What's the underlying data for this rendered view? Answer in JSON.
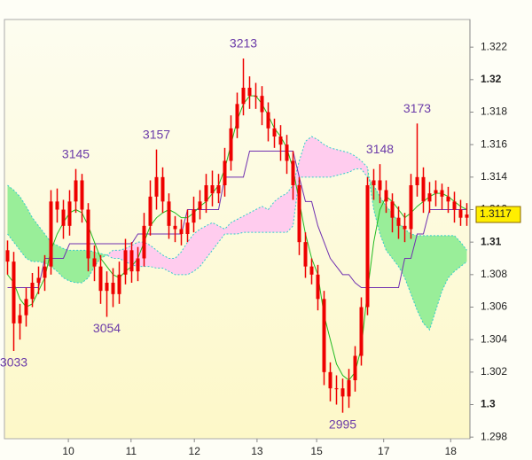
{
  "chart_data": {
    "type": "candlestick",
    "open": [
      1.3095,
      1.3088,
      1.305,
      1.3055,
      1.3065,
      1.3075,
      1.3078,
      1.3085,
      1.3125,
      1.312,
      1.311,
      1.3125,
      1.3138,
      1.312,
      1.309,
      1.3085,
      1.307,
      1.3075,
      1.3068,
      1.308,
      1.3095,
      1.3082,
      1.309,
      1.311,
      1.3128,
      1.314,
      1.3125,
      1.311,
      1.3108,
      1.3105,
      1.3112,
      1.312,
      1.3125,
      1.3135,
      1.313,
      1.3135,
      1.315,
      1.317,
      1.3185,
      1.3195,
      1.319,
      1.319,
      1.318,
      1.317,
      1.3165,
      1.316,
      1.315,
      1.3135,
      1.31,
      1.3085,
      1.308,
      1.3065,
      1.302,
      1.301,
      1.301,
      1.3005,
      1.3015,
      1.303,
      1.306,
      1.3135,
      1.3138,
      1.3132,
      1.3125,
      1.3115,
      1.311,
      1.3108,
      1.3135,
      1.314,
      1.3125,
      1.313,
      1.3132,
      1.3128,
      1.3125,
      1.312,
      1.3115
    ],
    "high": [
      1.3101,
      1.3094,
      1.3062,
      1.3072,
      1.3081,
      1.3085,
      1.3092,
      1.3132,
      1.3133,
      1.3126,
      1.3132,
      1.3145,
      1.3142,
      1.3124,
      1.3098,
      1.3092,
      1.3082,
      1.3084,
      1.3088,
      1.3102,
      1.31,
      1.3097,
      1.3118,
      1.3138,
      1.3157,
      1.3146,
      1.313,
      1.3116,
      1.3114,
      1.312,
      1.3128,
      1.3132,
      1.3142,
      1.3144,
      1.3142,
      1.3158,
      1.3178,
      1.3192,
      1.3213,
      1.3202,
      1.3198,
      1.3196,
      1.3186,
      1.3176,
      1.3172,
      1.3166,
      1.3156,
      1.314,
      1.3106,
      1.309,
      1.3086,
      1.307,
      1.3026,
      1.3018,
      1.3016,
      1.3022,
      1.3036,
      1.3066,
      1.314,
      1.3145,
      1.3148,
      1.3138,
      1.313,
      1.3122,
      1.3118,
      1.3142,
      1.3173,
      1.3146,
      1.3137,
      1.3138,
      1.3136,
      1.3134,
      1.3131,
      1.3126,
      1.3124
    ],
    "low": [
      1.308,
      1.3033,
      1.304,
      1.3048,
      1.306,
      1.3068,
      1.307,
      1.308,
      1.3112,
      1.3102,
      1.3104,
      1.3118,
      1.3112,
      1.3082,
      1.3076,
      1.3062,
      1.3054,
      1.306,
      1.3062,
      1.3074,
      1.3075,
      1.3076,
      1.3085,
      1.3104,
      1.312,
      1.3118,
      1.3102,
      1.31,
      1.3098,
      1.31,
      1.3106,
      1.3114,
      1.3118,
      1.3122,
      1.3124,
      1.3128,
      1.3144,
      1.3164,
      1.3178,
      1.3182,
      1.3182,
      1.3172,
      1.3162,
      1.3158,
      1.315,
      1.3142,
      1.3126,
      1.3092,
      1.3078,
      1.3074,
      1.3058,
      1.3012,
      1.3002,
      1.3,
      1.2995,
      1.2998,
      1.3008,
      1.3024,
      1.3055,
      1.3126,
      1.3124,
      1.3118,
      1.3106,
      1.3102,
      1.31,
      1.3102,
      1.3128,
      1.3118,
      1.3118,
      1.3122,
      1.312,
      1.3118,
      1.3112,
      1.311,
      1.311
    ],
    "close": [
      1.3088,
      1.305,
      1.3055,
      1.3065,
      1.3075,
      1.3078,
      1.3085,
      1.3125,
      1.312,
      1.311,
      1.3125,
      1.3138,
      1.312,
      1.309,
      1.3085,
      1.307,
      1.3075,
      1.3068,
      1.308,
      1.3095,
      1.3082,
      1.309,
      1.311,
      1.3128,
      1.314,
      1.3125,
      1.311,
      1.3108,
      1.3105,
      1.3112,
      1.312,
      1.3125,
      1.3135,
      1.313,
      1.3135,
      1.315,
      1.317,
      1.3185,
      1.3195,
      1.319,
      1.319,
      1.318,
      1.317,
      1.3165,
      1.316,
      1.315,
      1.3135,
      1.31,
      1.3085,
      1.308,
      1.3065,
      1.302,
      1.301,
      1.301,
      1.3005,
      1.3015,
      1.303,
      1.306,
      1.3135,
      1.3138,
      1.3132,
      1.3125,
      1.3115,
      1.311,
      1.3108,
      1.3135,
      1.314,
      1.3125,
      1.313,
      1.3132,
      1.3128,
      1.3125,
      1.312,
      1.3115,
      1.3117
    ],
    "color": "#ee0000",
    "lines": [
      {
        "color": "#7030b0",
        "values": [
          1.3072,
          1.3072,
          1.3072,
          1.3072,
          1.3072,
          1.3072,
          1.309,
          1.309,
          1.309,
          1.309,
          1.3099,
          1.3099,
          1.3099,
          1.3099,
          1.3099,
          1.3099,
          1.3099,
          1.3099,
          1.3099,
          1.3099,
          1.3099,
          1.3105,
          1.3105,
          1.3105,
          1.3105,
          1.3105,
          1.3105,
          1.3105,
          1.3105,
          1.312,
          1.312,
          1.312,
          1.312,
          1.312,
          1.312,
          1.314,
          1.314,
          1.314,
          1.314,
          1.3156,
          1.3156,
          1.3156,
          1.3156,
          1.3156,
          1.3156,
          1.3156,
          1.3156,
          1.314,
          1.3125,
          1.3125,
          1.311,
          1.31,
          1.309,
          1.3085,
          1.308,
          1.308,
          1.3075,
          1.3072,
          1.3072,
          1.3072,
          1.3072,
          1.3072,
          1.3072,
          1.3072,
          1.309,
          1.309,
          1.3105,
          1.3105,
          1.312,
          1.312,
          1.312,
          1.312,
          1.312,
          1.312,
          1.312
        ]
      },
      {
        "color": "#22bb22",
        "values": [
          1.308,
          1.3075,
          1.3065,
          1.306,
          1.3062,
          1.307,
          1.3078,
          1.3095,
          1.3105,
          1.3112,
          1.3118,
          1.312,
          1.3118,
          1.311,
          1.31,
          1.309,
          1.3085,
          1.308,
          1.3078,
          1.3082,
          1.3085,
          1.309,
          1.31,
          1.311,
          1.3115,
          1.3118,
          1.312,
          1.3118,
          1.3115,
          1.3115,
          1.3118,
          1.3122,
          1.3125,
          1.313,
          1.3135,
          1.3145,
          1.316,
          1.3175,
          1.3185,
          1.319,
          1.319,
          1.3185,
          1.3178,
          1.317,
          1.3165,
          1.3158,
          1.3145,
          1.3125,
          1.3105,
          1.309,
          1.308,
          1.3055,
          1.304,
          1.3025,
          1.3018,
          1.3015,
          1.302,
          1.3035,
          1.307,
          1.31,
          1.312,
          1.3128,
          1.3125,
          1.312,
          1.3115,
          1.3118,
          1.3122,
          1.3125,
          1.3128,
          1.313,
          1.313,
          1.3128,
          1.3125,
          1.3122,
          1.312
        ]
      }
    ],
    "cloud": {
      "span_a": [
        1.3135,
        1.3132,
        1.3128,
        1.3122,
        1.3115,
        1.311,
        1.3105,
        1.31,
        1.3098,
        1.3096,
        1.3095,
        1.3095,
        1.3095,
        1.3095,
        1.3094,
        1.3093,
        1.3092,
        1.309,
        1.309,
        1.3088,
        1.3086,
        1.3085,
        1.3085,
        1.3085,
        1.3084,
        1.3084,
        1.3082,
        1.308,
        1.308,
        1.308,
        1.3082,
        1.3085,
        1.309,
        1.3095,
        1.31,
        1.3105,
        1.3105,
        1.3105,
        1.3106,
        1.3106,
        1.3106,
        1.3106,
        1.3106,
        1.3106,
        1.3106,
        1.3106,
        1.311,
        1.314,
        1.314,
        1.314,
        1.314,
        1.314,
        1.314,
        1.3141,
        1.3142,
        1.3143,
        1.3145,
        1.3145,
        1.314,
        1.3135,
        1.3128,
        1.3122,
        1.3118,
        1.3112,
        1.3108,
        1.3105,
        1.3104,
        1.3104,
        1.3104,
        1.3104,
        1.3104,
        1.3104,
        1.3104,
        1.31,
        1.3095
      ],
      "span_b": [
        1.3105,
        1.31,
        1.3095,
        1.309,
        1.3088,
        1.3088,
        1.3087,
        1.3085,
        1.3082,
        1.3078,
        1.3076,
        1.3075,
        1.3075,
        1.3078,
        1.3085,
        1.309,
        1.3092,
        1.3095,
        1.3095,
        1.3096,
        1.3098,
        1.31,
        1.31,
        1.3098,
        1.3095,
        1.3092,
        1.309,
        1.309,
        1.3094,
        1.31,
        1.3105,
        1.3108,
        1.311,
        1.3112,
        1.311,
        1.3108,
        1.3112,
        1.3114,
        1.3116,
        1.3118,
        1.312,
        1.3122,
        1.312,
        1.3125,
        1.3128,
        1.313,
        1.3135,
        1.315,
        1.3162,
        1.3165,
        1.3163,
        1.316,
        1.3158,
        1.3157,
        1.3156,
        1.3155,
        1.3153,
        1.315,
        1.3146,
        1.312,
        1.3105,
        1.3095,
        1.309,
        1.3085,
        1.3078,
        1.3068,
        1.3058,
        1.305,
        1.3046,
        1.3058,
        1.307,
        1.3078,
        1.3082,
        1.3085,
        1.3088
      ],
      "up_color": "#99ee99",
      "down_color": "#ffccee",
      "edge_color": "#33cccc"
    },
    "annotations": [
      {
        "text": "3033",
        "candle": 1,
        "at": "low"
      },
      {
        "text": "3145",
        "candle": 11,
        "at": "high"
      },
      {
        "text": "3054",
        "candle": 16,
        "at": "low"
      },
      {
        "text": "3157",
        "candle": 24,
        "at": "high"
      },
      {
        "text": "3213",
        "candle": 38,
        "at": "high"
      },
      {
        "text": "2995",
        "candle": 54,
        "at": "low"
      },
      {
        "text": "3148",
        "candle": 60,
        "at": "high"
      },
      {
        "text": "3173",
        "candle": 66,
        "at": "high"
      }
    ],
    "last_price": 1.3117,
    "xlim": [
      0,
      75
    ],
    "xticks": [
      {
        "value": 10.3,
        "label": "10"
      },
      {
        "value": 20.4,
        "label": "11"
      },
      {
        "value": 30.6,
        "label": "12"
      },
      {
        "value": 40.7,
        "label": "13"
      },
      {
        "value": 50.3,
        "label": "15"
      },
      {
        "value": 61.1,
        "label": "17"
      },
      {
        "value": 71.9,
        "label": "18"
      }
    ],
    "ylim": [
      1.2979,
      1.3237
    ],
    "yticks": [
      1.298,
      1.3,
      1.302,
      1.304,
      1.306,
      1.308,
      1.31,
      1.312,
      1.314,
      1.316,
      1.318,
      1.32,
      1.322
    ]
  }
}
